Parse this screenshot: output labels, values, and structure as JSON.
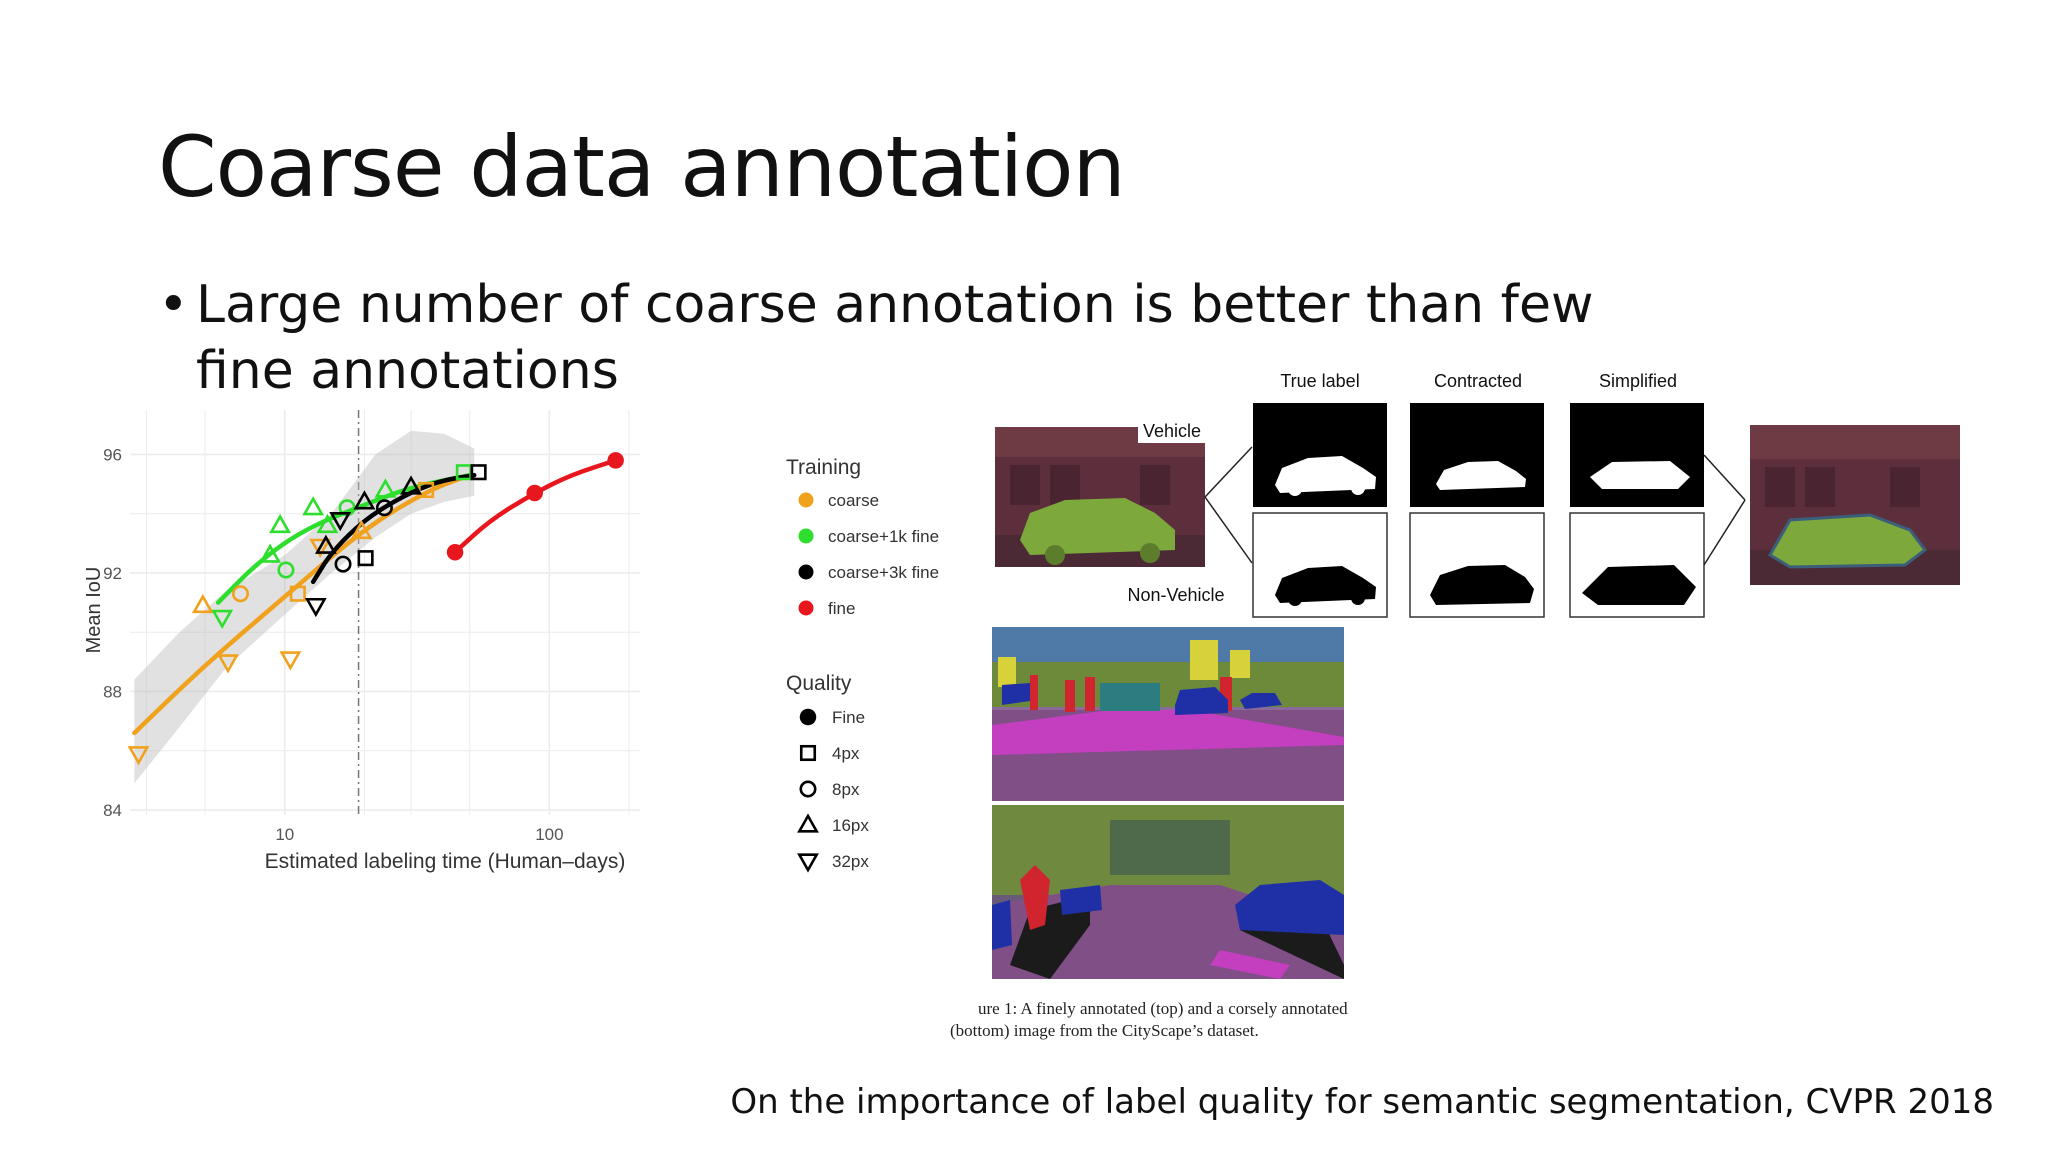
{
  "slide": {
    "title": "Coarse data annotation",
    "bullet": "Large number of coarse annotation is better than few fine annotations",
    "citation": "On the importance of label quality for semantic segmentation, CVPR 2018"
  },
  "chart_data": {
    "type": "scatter",
    "title": "",
    "xlabel": "Estimated labeling time (Human–days)",
    "ylabel": "Mean IoU",
    "x_scale": "log",
    "xlim": [
      2.6,
      220
    ],
    "ylim": [
      84,
      97.5
    ],
    "x_ticks": [
      10,
      100
    ],
    "y_ticks": [
      84,
      88,
      92,
      96
    ],
    "grid": true,
    "vline_x": 19,
    "legend_position": "right",
    "legend_training_title": "Training",
    "legend_quality_title": "Quality",
    "training": [
      {
        "name": "coarse",
        "color": "#f0a11e"
      },
      {
        "name": "coarse+1k fine",
        "color": "#2dde2d"
      },
      {
        "name": "coarse+3k fine",
        "color": "#000000"
      },
      {
        "name": "fine",
        "color": "#e8161d"
      }
    ],
    "quality": [
      {
        "name": "Fine",
        "shape": "circle-filled"
      },
      {
        "name": "4px",
        "shape": "square"
      },
      {
        "name": "8px",
        "shape": "circle"
      },
      {
        "name": "16px",
        "shape": "triangle-up"
      },
      {
        "name": "32px",
        "shape": "triangle-down"
      }
    ],
    "points": [
      {
        "series": "coarse",
        "shape": "triangle-down",
        "x": 2.8,
        "y": 85.9
      },
      {
        "series": "coarse",
        "shape": "triangle-down",
        "x": 6.1,
        "y": 89.0
      },
      {
        "series": "coarse",
        "shape": "triangle-up",
        "x": 4.9,
        "y": 90.9
      },
      {
        "series": "coarse",
        "shape": "circle",
        "x": 6.8,
        "y": 91.3
      },
      {
        "series": "coarse",
        "shape": "triangle-down",
        "x": 10.5,
        "y": 89.1
      },
      {
        "series": "coarse",
        "shape": "square",
        "x": 11.2,
        "y": 91.3
      },
      {
        "series": "coarse",
        "shape": "triangle-down",
        "x": 13.6,
        "y": 92.9
      },
      {
        "series": "coarse",
        "shape": "triangle-up",
        "x": 19.5,
        "y": 93.4
      },
      {
        "series": "coarse",
        "shape": "square",
        "x": 34.2,
        "y": 94.8
      },
      {
        "series": "coarse+1k fine",
        "shape": "triangle-down",
        "x": 5.8,
        "y": 90.5
      },
      {
        "series": "coarse+1k fine",
        "shape": "triangle-up",
        "x": 8.8,
        "y": 92.6
      },
      {
        "series": "coarse+1k fine",
        "shape": "triangle-up",
        "x": 9.6,
        "y": 93.6
      },
      {
        "series": "coarse+1k fine",
        "shape": "circle",
        "x": 10.1,
        "y": 92.1
      },
      {
        "series": "coarse+1k fine",
        "shape": "triangle-up",
        "x": 12.8,
        "y": 94.2
      },
      {
        "series": "coarse+1k fine",
        "shape": "triangle-up",
        "x": 14.5,
        "y": 93.6
      },
      {
        "series": "coarse+1k fine",
        "shape": "circle",
        "x": 17.2,
        "y": 94.2
      },
      {
        "series": "coarse+1k fine",
        "shape": "triangle-up",
        "x": 24.0,
        "y": 94.8
      },
      {
        "series": "coarse+1k fine",
        "shape": "square",
        "x": 47.5,
        "y": 95.4
      },
      {
        "series": "coarse+3k fine",
        "shape": "triangle-down",
        "x": 13.1,
        "y": 90.9
      },
      {
        "series": "coarse+3k fine",
        "shape": "triangle-up",
        "x": 14.3,
        "y": 92.9
      },
      {
        "series": "coarse+3k fine",
        "shape": "circle",
        "x": 16.6,
        "y": 92.3
      },
      {
        "series": "coarse+3k fine",
        "shape": "triangle-down",
        "x": 16.2,
        "y": 93.8
      },
      {
        "series": "coarse+3k fine",
        "shape": "square",
        "x": 20.2,
        "y": 92.5
      },
      {
        "series": "coarse+3k fine",
        "shape": "triangle-up",
        "x": 20.0,
        "y": 94.4
      },
      {
        "series": "coarse+3k fine",
        "shape": "circle",
        "x": 23.8,
        "y": 94.2
      },
      {
        "series": "coarse+3k fine",
        "shape": "triangle-up",
        "x": 30.0,
        "y": 94.9
      },
      {
        "series": "coarse+3k fine",
        "shape": "square",
        "x": 54.0,
        "y": 95.4
      },
      {
        "series": "fine",
        "shape": "circle-filled",
        "x": 44.0,
        "y": 92.7
      },
      {
        "series": "fine",
        "shape": "circle-filled",
        "x": 88.0,
        "y": 94.7
      },
      {
        "series": "fine",
        "shape": "circle-filled",
        "x": 178.0,
        "y": 95.8
      }
    ],
    "fits": [
      {
        "series": "coarse",
        "x": [
          2.7,
          5,
          10,
          20,
          35,
          50
        ],
        "y": [
          86.6,
          88.9,
          91.2,
          93.5,
          94.8,
          95.3
        ]
      },
      {
        "series": "coarse+1k fine",
        "x": [
          5.6,
          8,
          12,
          20,
          30,
          50
        ],
        "y": [
          91.0,
          92.4,
          93.5,
          94.3,
          94.9,
          95.3
        ]
      },
      {
        "series": "coarse+3k fine",
        "x": [
          12.8,
          15,
          20,
          28,
          38,
          52
        ],
        "y": [
          91.7,
          92.7,
          93.8,
          94.6,
          95.1,
          95.3
        ]
      },
      {
        "series": "fine",
        "x": [
          44,
          60,
          88,
          120,
          178
        ],
        "y": [
          92.7,
          93.8,
          94.7,
          95.3,
          95.8
        ]
      }
    ]
  },
  "figure": {
    "label_true": "True label",
    "label_contracted": "Contracted",
    "label_simplified": "Simplified",
    "label_vehicle": "Vehicle",
    "label_nonvehicle": "Non-Vehicle",
    "caption_line1": "ure 1: A finely annotated (top) and a corsely annotated",
    "caption_line2": "(bottom) image from the CityScape’s dataset."
  }
}
